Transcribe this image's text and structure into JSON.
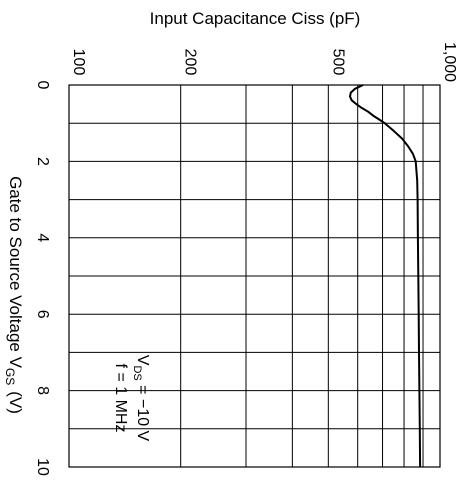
{
  "chart_data": {
    "type": "line",
    "orientation": "rotated 90 degrees clockwise",
    "y_axis_label": "Input Capacitance  Ciss  (pF)",
    "y_scale": "log",
    "y_ticks": [
      {
        "value": 100,
        "label": "100"
      },
      {
        "value": 200,
        "label": "200"
      },
      {
        "value": 500,
        "label": "500"
      },
      {
        "value": 1000,
        "label": "1,000"
      }
    ],
    "y_gridlines": [
      100,
      200,
      300,
      400,
      500,
      600,
      700,
      800,
      900,
      1000
    ],
    "y_range": [
      100,
      1000
    ],
    "x_axis_label": "Gate to Source Voltage  V",
    "x_axis_label_sub": "GS",
    "x_axis_label_unit": "(V)",
    "x_ticks": [
      {
        "value": 0,
        "label": "0"
      },
      {
        "value": 2,
        "label": "2"
      },
      {
        "value": 4,
        "label": "4"
      },
      {
        "value": 6,
        "label": "6"
      },
      {
        "value": 8,
        "label": "8"
      },
      {
        "value": 10,
        "label": "10"
      }
    ],
    "x_gridlines": [
      0,
      1,
      2,
      3,
      4,
      5,
      6,
      7,
      8,
      9,
      10
    ],
    "x_range": [
      0,
      10
    ],
    "grid": true,
    "annotation": {
      "line1_prefix": "V",
      "line1_sub": "DS",
      "line1_value": " = −10 V",
      "line2": "f = 1 MHz"
    },
    "series": [
      {
        "x": [
          0,
          0.1,
          0.2,
          0.3,
          0.4,
          0.5,
          0.6,
          0.7,
          0.8,
          0.9,
          1.0,
          1.2,
          1.4,
          1.6,
          1.8,
          2.0,
          2.5,
          3,
          4,
          5,
          6,
          7,
          8,
          9,
          10
        ],
        "y": [
          620,
          590,
          575,
          572,
          578,
          595,
          615,
          640,
          660,
          685,
          710,
          750,
          790,
          820,
          845,
          860,
          868,
          870,
          872,
          874,
          876,
          878,
          880,
          882,
          884
        ]
      }
    ],
    "colors": {
      "line": "#000000",
      "grid": "#000000"
    }
  }
}
